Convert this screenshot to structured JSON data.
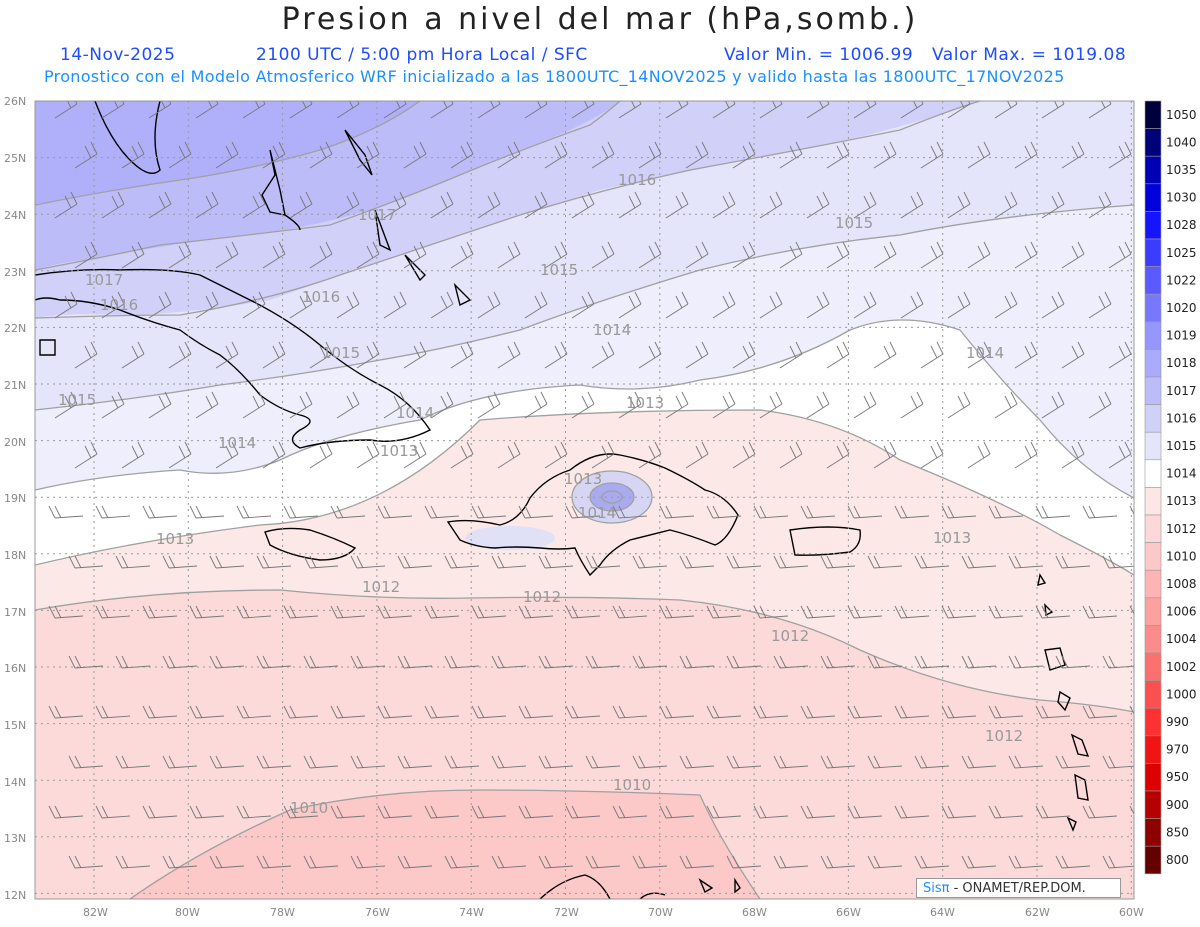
{
  "header": {
    "title": "Presion a nivel del mar (hPa,somb.)",
    "date": "14-Nov-2025",
    "time_info": "2100 UTC / 5:00 pm Hora Local / SFC",
    "min_label": "Valor Min. = 1006.99",
    "max_label": "Valor Max. = 1019.08",
    "forecast_info": "Pronostico con el Modelo Atmosferico WRF inicializado a las 1800UTC_14NOV2025 y valido hasta las  1800UTC_17NOV2025"
  },
  "map": {
    "lat_labels": [
      "26N",
      "25N",
      "24N",
      "23N",
      "22N",
      "21N",
      "20N",
      "19N",
      "18N",
      "17N",
      "16N",
      "15N",
      "14N",
      "13N",
      "12N"
    ],
    "lon_labels": [
      "82W",
      "80W",
      "78W",
      "76W",
      "74W",
      "72W",
      "70W",
      "68W",
      "66W",
      "64W",
      "62W",
      "60W"
    ],
    "contour_labels": [
      "1016",
      "1017",
      "1015",
      "1017",
      "1016",
      "1016",
      "1015",
      "1014",
      "1015",
      "1014",
      "1014",
      "1015",
      "1014",
      "1013",
      "1013",
      "1013",
      "1013",
      "1012",
      "1012",
      "1012",
      "1012",
      "1010",
      "1010",
      "1014",
      "1013"
    ]
  },
  "colorbar": {
    "labels": [
      "1050",
      "1040",
      "1035",
      "1030",
      "1028",
      "1025",
      "1022",
      "1020",
      "1019",
      "1018",
      "1017",
      "1016",
      "1015",
      "1014",
      "1013",
      "1012",
      "1010",
      "1008",
      "1006",
      "1004",
      "1002",
      "1000",
      "990",
      "970",
      "950",
      "900",
      "850",
      "800"
    ],
    "colors": [
      "#00003c",
      "#000078",
      "#0000b4",
      "#0000dc",
      "#1414ff",
      "#3c3cff",
      "#5a5aff",
      "#7878ff",
      "#9696ff",
      "#aaaaff",
      "#bcbcf8",
      "#d0d0f8",
      "#e4e4fa",
      "#ffffff",
      "#fde6e6",
      "#fcd8d8",
      "#fcc8c8",
      "#fcb4b4",
      "#fca0a0",
      "#fc8c8c",
      "#fc7070",
      "#fc5050",
      "#fc3232",
      "#f01414",
      "#dc0000",
      "#b40000",
      "#8c0000",
      "#640000"
    ]
  },
  "credit": {
    "brand": "Sisπ",
    "text": " - ONAMET/REP.DOM."
  }
}
